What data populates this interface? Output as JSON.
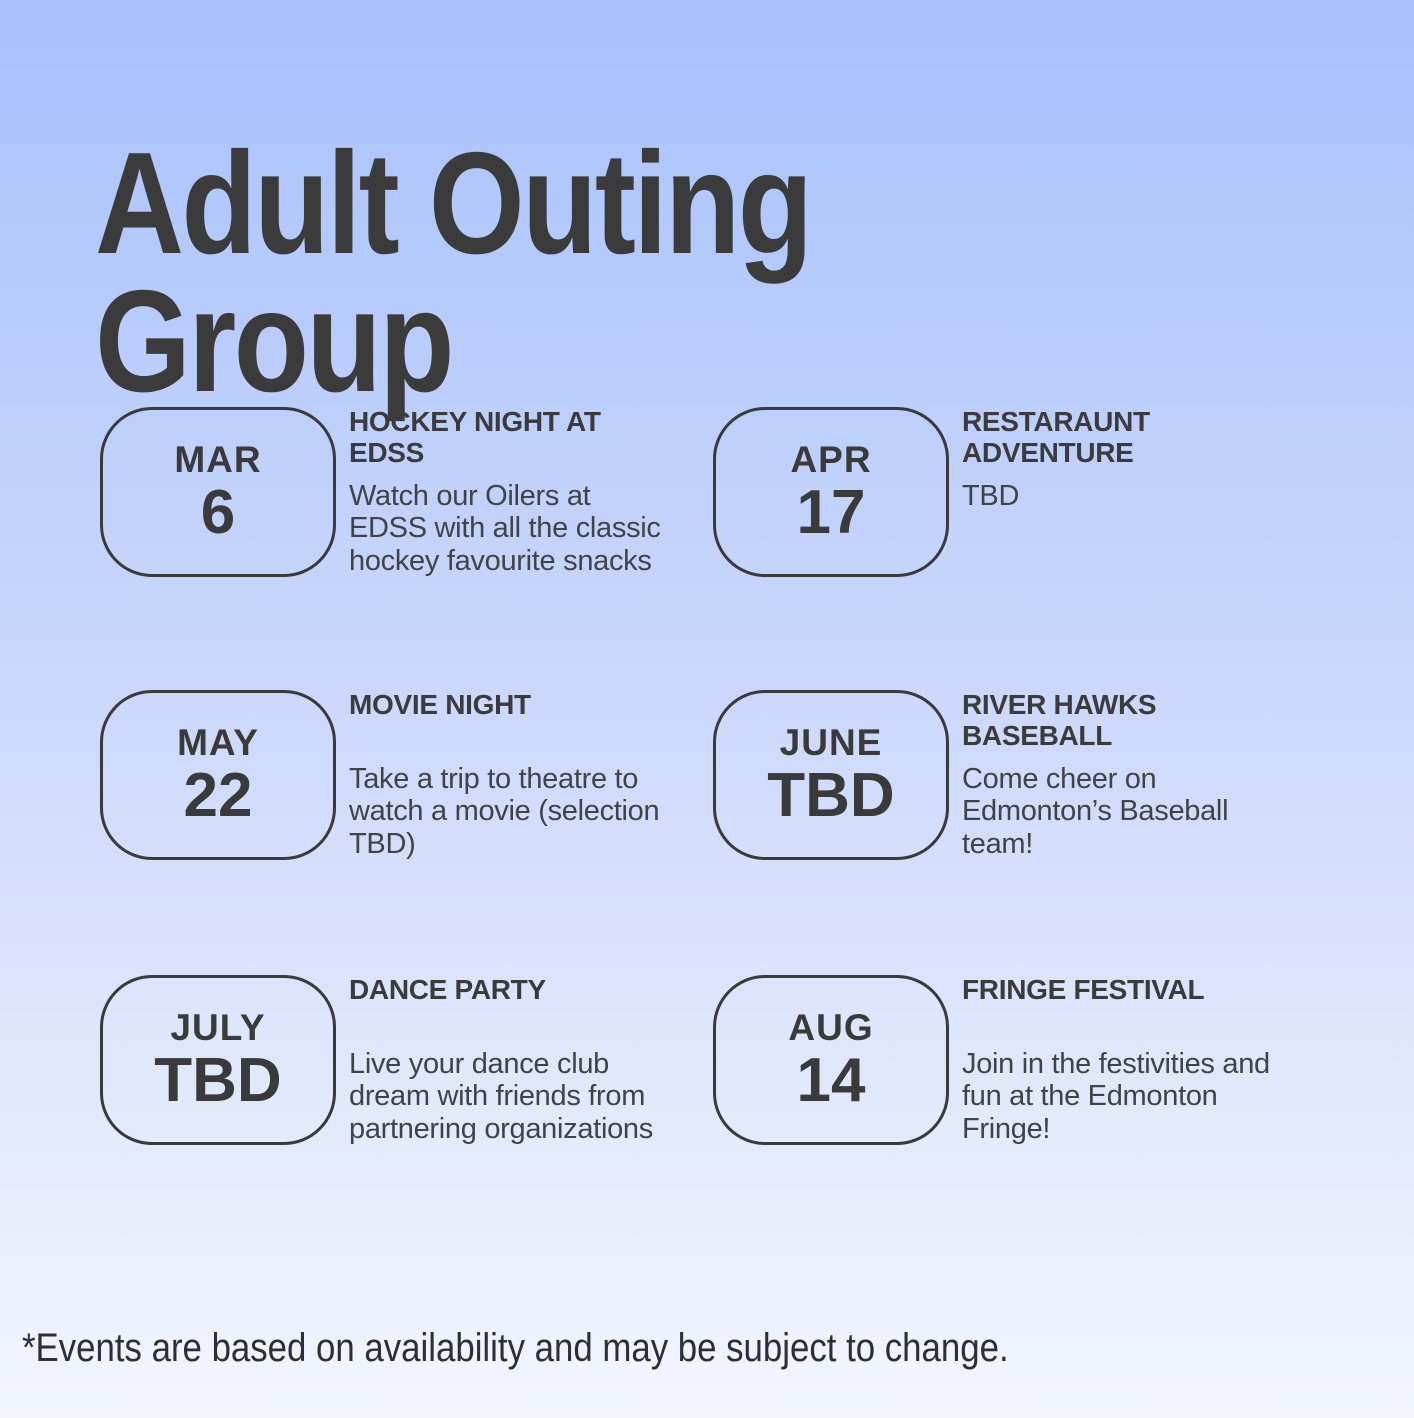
{
  "page": {
    "title_line1": "Adult Outing",
    "title_line2": "Group",
    "footnote": "*Events are based on availability and may be subject to change.",
    "colors": {
      "background_top": "#a8c1fc",
      "background_bottom": "#f3f6fd",
      "text_dark": "#3b3b3b"
    }
  },
  "events": [
    {
      "month": "MAR",
      "day": "6",
      "title": "HOCKEY NIGHT AT EDSS",
      "description": "Watch our Oilers at EDSS with all the classic hockey favourite snacks"
    },
    {
      "month": "APR",
      "day": "17",
      "title": "RESTARAUNT ADVENTURE",
      "description": "TBD"
    },
    {
      "month": "MAY",
      "day": "22",
      "title": "MOVIE NIGHT",
      "description": "Take a trip to theatre to watch a movie (selection TBD)"
    },
    {
      "month": "JUNE",
      "day": "TBD",
      "title": "RIVER HAWKS BASEBALL",
      "description": "Come cheer on Edmonton’s Baseball team!"
    },
    {
      "month": "JULY",
      "day": "TBD",
      "title": "DANCE PARTY",
      "description": "Live your dance club dream with friends from partnering organizations"
    },
    {
      "month": "AUG",
      "day": "14",
      "title": "FRINGE FESTIVAL",
      "description": "Join in the festivities and fun at the Edmonton Fringe!"
    }
  ]
}
